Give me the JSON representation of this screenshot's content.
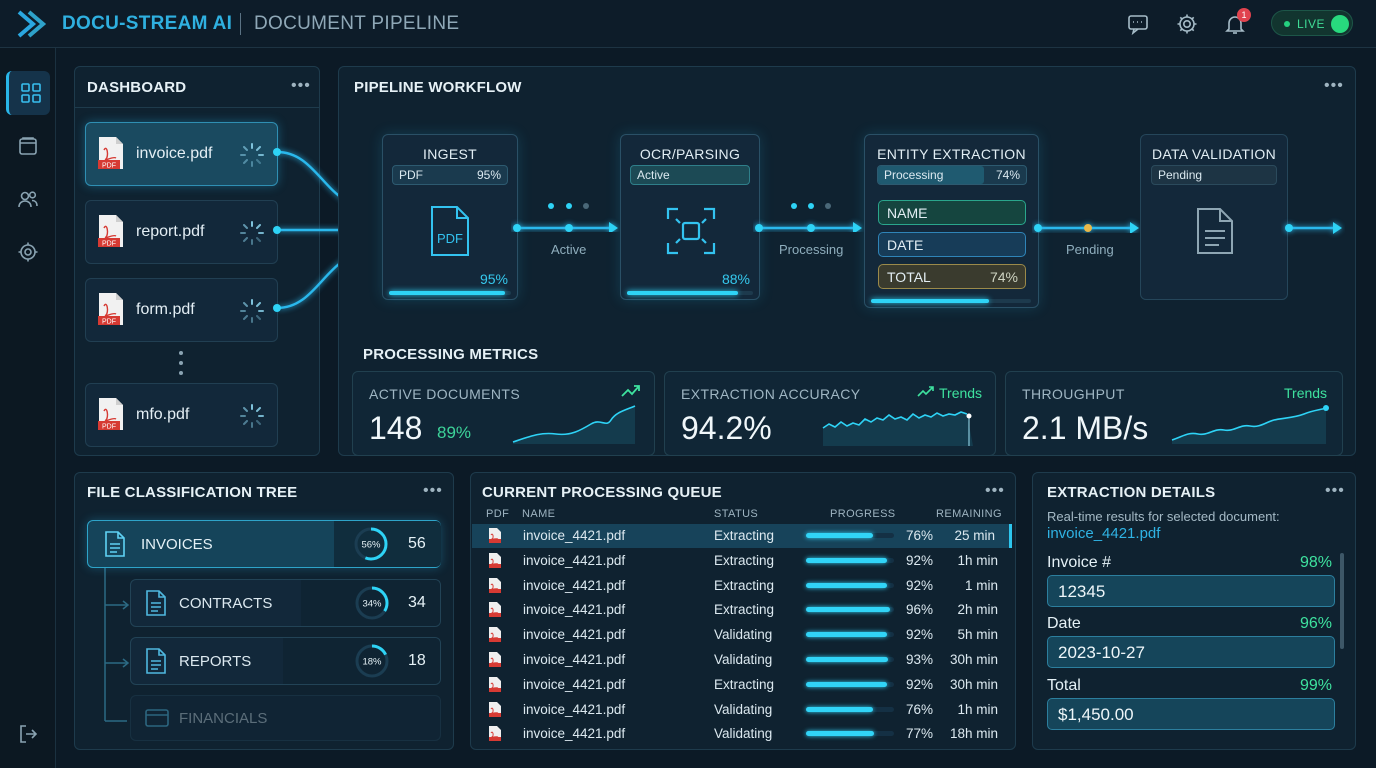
{
  "header": {
    "brand": "DOCU-STREAM AI",
    "subtitle": "DOCUMENT PIPELINE",
    "notif_count": "1",
    "live_label": "LIVE",
    "icons": [
      "chat-icon",
      "gear-icon",
      "bell-icon"
    ]
  },
  "sidebar": {
    "items": [
      "grid-icon",
      "folder-icon",
      "users-icon",
      "gear-icon"
    ],
    "bottom": "logout-icon"
  },
  "dashboard": {
    "title": "DASHBOARD",
    "menu": "•••",
    "files": [
      {
        "name": "invoice.pdf",
        "badge": "PDF"
      },
      {
        "name": "report.pdf",
        "badge": "PDF"
      },
      {
        "name": "form.pdf",
        "badge": "PDF"
      },
      {
        "name": "mfo.pdf",
        "badge": "PDF"
      }
    ]
  },
  "workflow": {
    "title": "PIPELINE WORKFLOW",
    "menu": "•••",
    "ingest": {
      "title": "INGEST",
      "chip_left": "PDF",
      "chip_right": "95%",
      "icon_label": "PDF",
      "percent": "95%",
      "progress": 0.95
    },
    "ocr": {
      "title": "OCR/PARSING",
      "chip": "Active",
      "percent": "88%",
      "progress": 0.88
    },
    "entity": {
      "title": "ENTITY EXTRACTION",
      "chip_left": "Processing",
      "chip_right": "74%",
      "fields": [
        "NAME",
        "DATE",
        "TOTAL"
      ],
      "total_pct": "74%",
      "progress": 0.74
    },
    "validation": {
      "title": "DATA VALIDATION",
      "chip": "Pending"
    },
    "connectors": [
      "Active",
      "Processing",
      "Pending"
    ]
  },
  "metrics": {
    "title": "PROCESSING METRICS",
    "active": {
      "label": "ACTIVE DOCUMENTS",
      "value": "148",
      "sub": "89%"
    },
    "accuracy": {
      "label": "EXTRACTION ACCURACY",
      "value": "94.2%",
      "trend": "Trends"
    },
    "throughput": {
      "label": "THROUGHPUT",
      "value": "2.1 MB/s",
      "trend": "Trends"
    }
  },
  "tree": {
    "title": "FILE CLASSIFICATION TREE",
    "menu": "•••",
    "items": [
      {
        "label": "INVOICES",
        "pct": "56%",
        "count": "56",
        "fraction": 0.56
      },
      {
        "label": "CONTRACTS",
        "pct": "34%",
        "count": "34",
        "fraction": 0.34
      },
      {
        "label": "REPORTS",
        "pct": "18%",
        "count": "18",
        "fraction": 0.18
      },
      {
        "label": "FINANCIALS"
      }
    ]
  },
  "queue": {
    "title": "CURRENT PROCESSING QUEUE",
    "menu": "•••",
    "headers": [
      "PDF",
      "NAME",
      "STATUS",
      "PROGRESS",
      "REMAINING"
    ],
    "rows": [
      {
        "name": "invoice_4421.pdf",
        "status": "Extracting",
        "pct": "76%",
        "progress": 0.76,
        "remaining": "25 min"
      },
      {
        "name": "invoice_4421.pdf",
        "status": "Extracting",
        "pct": "92%",
        "progress": 0.92,
        "remaining": "1h min"
      },
      {
        "name": "invoice_4421.pdf",
        "status": "Extracting",
        "pct": "92%",
        "progress": 0.92,
        "remaining": "1 min"
      },
      {
        "name": "invoice_4421.pdf",
        "status": "Extracting",
        "pct": "96%",
        "progress": 0.96,
        "remaining": "2h min"
      },
      {
        "name": "invoice_4421.pdf",
        "status": "Validating",
        "pct": "92%",
        "progress": 0.92,
        "remaining": "5h min"
      },
      {
        "name": "invoice_4421.pdf",
        "status": "Validating",
        "pct": "93%",
        "progress": 0.93,
        "remaining": "30h min"
      },
      {
        "name": "invoice_4421.pdf",
        "status": "Extracting",
        "pct": "92%",
        "progress": 0.92,
        "remaining": "30h min"
      },
      {
        "name": "invoice_4421.pdf",
        "status": "Validating",
        "pct": "76%",
        "progress": 0.76,
        "remaining": "1h min"
      },
      {
        "name": "invoice_4421.pdf",
        "status": "Validating",
        "pct": "77%",
        "progress": 0.77,
        "remaining": "18h min"
      }
    ]
  },
  "details": {
    "title": "EXTRACTION DETAILS",
    "menu": "•••",
    "subtitle": "Real-time results for selected document:",
    "doc": "invoice_4421.pdf",
    "fields": [
      {
        "label": "Invoice #",
        "conf": "98%",
        "value": "12345"
      },
      {
        "label": "Date",
        "conf": "96%",
        "value": "2023-10-27"
      },
      {
        "label": "Total",
        "conf": "99%",
        "value": "$1,450.00"
      }
    ]
  },
  "colors": {
    "accent": "#2ed3f6",
    "live": "#28d97e",
    "badge": "#e0434e",
    "background": "#0c1a26"
  }
}
